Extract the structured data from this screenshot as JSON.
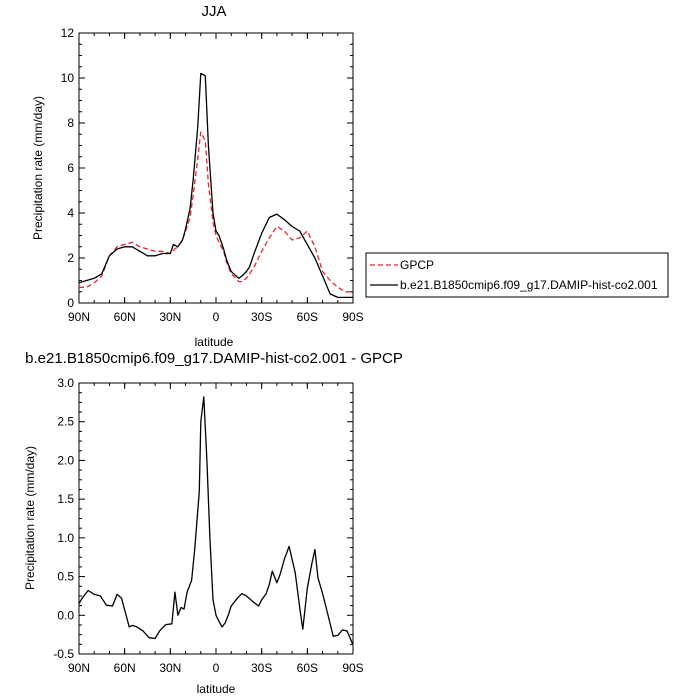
{
  "chart_data": [
    {
      "type": "line",
      "title": "JJA",
      "xlabel": "latitude",
      "ylabel": "Precipitation rate (mm/day)",
      "x_ticks": [
        {
          "value": 90,
          "label": "90N"
        },
        {
          "value": 60,
          "label": "60N"
        },
        {
          "value": 30,
          "label": "30N"
        },
        {
          "value": 0,
          "label": "0"
        },
        {
          "value": -30,
          "label": "30S"
        },
        {
          "value": -60,
          "label": "60S"
        },
        {
          "value": -90,
          "label": "90S"
        }
      ],
      "xlim": [
        90,
        -90
      ],
      "ylim": [
        0,
        12
      ],
      "y_ticks": [
        0,
        2,
        4,
        6,
        8,
        10,
        12
      ],
      "legend_position": "outside-right",
      "series": [
        {
          "name": "GPCP",
          "color": "#e8242c",
          "dash": "dashed",
          "x": [
            90,
            85,
            80,
            75,
            70,
            65,
            60,
            55,
            50,
            45,
            40,
            35,
            30,
            27,
            25,
            22,
            20,
            17,
            15,
            12,
            10,
            7,
            5,
            2,
            0,
            -2,
            -5,
            -7,
            -10,
            -15,
            -17,
            -20,
            -22,
            -25,
            -30,
            -35,
            -40,
            -45,
            -50,
            -55,
            -60,
            -65,
            -70,
            -75,
            -80,
            -85,
            -90
          ],
          "y": [
            0.7,
            0.7,
            0.9,
            1.2,
            2.1,
            2.5,
            2.6,
            2.7,
            2.5,
            2.4,
            2.3,
            2.3,
            2.2,
            2.4,
            2.5,
            2.8,
            3.2,
            3.8,
            4.8,
            6.4,
            7.6,
            7.2,
            5.3,
            3.6,
            3.0,
            2.7,
            2.3,
            1.8,
            1.3,
            0.95,
            0.95,
            1.1,
            1.3,
            1.6,
            2.3,
            2.9,
            3.4,
            3.2,
            2.8,
            2.9,
            3.2,
            2.5,
            1.4,
            1.0,
            0.7,
            0.5,
            0.5
          ]
        },
        {
          "name": "b.e21.B1850cmip6.f09_g17.DAMIP-hist-co2.001",
          "color": "#000000",
          "dash": "solid",
          "x": [
            90,
            85,
            80,
            75,
            70,
            65,
            60,
            55,
            50,
            45,
            40,
            35,
            30,
            28,
            25,
            22,
            20,
            17,
            15,
            12,
            10,
            7,
            5,
            2,
            0,
            -2,
            -5,
            -7,
            -10,
            -15,
            -17,
            -20,
            -22,
            -25,
            -30,
            -35,
            -40,
            -45,
            -50,
            -55,
            -60,
            -65,
            -70,
            -75,
            -80,
            -85,
            -90
          ],
          "y": [
            0.9,
            1.0,
            1.1,
            1.3,
            2.1,
            2.4,
            2.5,
            2.5,
            2.3,
            2.1,
            2.1,
            2.2,
            2.2,
            2.6,
            2.5,
            2.8,
            3.3,
            4.2,
            5.5,
            7.8,
            10.2,
            10.1,
            7.0,
            4.0,
            3.2,
            3.0,
            2.4,
            1.9,
            1.4,
            1.1,
            1.2,
            1.4,
            1.6,
            2.2,
            3.1,
            3.8,
            3.95,
            3.7,
            3.4,
            3.2,
            2.6,
            2.0,
            1.2,
            0.4,
            0.25,
            0.25,
            0.25
          ]
        }
      ]
    },
    {
      "type": "line",
      "title": "b.e21.B1850cmip6.f09_g17.DAMIP-hist-co2.001 - GPCP",
      "xlabel": "latitude",
      "ylabel": "Precipitation rate (mm/day)",
      "x_ticks": [
        {
          "value": 90,
          "label": "90N"
        },
        {
          "value": 60,
          "label": "60N"
        },
        {
          "value": 30,
          "label": "30N"
        },
        {
          "value": 0,
          "label": "0"
        },
        {
          "value": -30,
          "label": "30S"
        },
        {
          "value": -60,
          "label": "60S"
        },
        {
          "value": -90,
          "label": "90S"
        }
      ],
      "xlim": [
        90,
        -90
      ],
      "ylim": [
        -0.5,
        3.0
      ],
      "y_ticks": [
        -0.5,
        0.0,
        0.5,
        1.0,
        1.5,
        2.0,
        2.5,
        3.0
      ],
      "y_tick_labels": [
        "-0.5",
        "0.0",
        "0.5",
        "1.0",
        "1.5",
        "2.0",
        "2.5",
        "3.0"
      ],
      "series": [
        {
          "color": "#000000",
          "dash": "solid",
          "x": [
            90,
            88,
            84,
            80,
            76,
            72,
            68,
            65,
            62,
            57,
            55,
            52,
            48,
            44,
            40,
            37,
            33,
            29,
            27,
            25,
            23,
            21,
            19,
            16,
            14,
            11,
            10,
            8,
            6,
            4,
            2,
            0,
            -2,
            -4,
            -6,
            -8,
            -10,
            -14,
            -17,
            -20,
            -24,
            -28,
            -30,
            -33,
            -35,
            -37,
            -40,
            -42,
            -45,
            -48,
            -52,
            -55,
            -57,
            -60,
            -63,
            -65,
            -67,
            -70,
            -73,
            -77,
            -80,
            -83,
            -86,
            -90
          ],
          "y": [
            0.15,
            0.22,
            0.32,
            0.27,
            0.25,
            0.13,
            0.12,
            0.27,
            0.22,
            -0.15,
            -0.13,
            -0.15,
            -0.2,
            -0.29,
            -0.3,
            -0.2,
            -0.12,
            -0.11,
            0.3,
            0.0,
            0.1,
            0.08,
            0.3,
            0.45,
            0.85,
            1.6,
            2.5,
            2.82,
            2.0,
            1.0,
            0.2,
            0.0,
            -0.08,
            -0.15,
            -0.1,
            0.0,
            0.12,
            0.22,
            0.28,
            0.25,
            0.18,
            0.12,
            0.2,
            0.28,
            0.4,
            0.57,
            0.42,
            0.52,
            0.73,
            0.89,
            0.55,
            0.1,
            -0.18,
            0.35,
            0.67,
            0.85,
            0.48,
            0.28,
            0.05,
            -0.27,
            -0.26,
            -0.19,
            -0.2,
            -0.38
          ]
        }
      ]
    }
  ]
}
